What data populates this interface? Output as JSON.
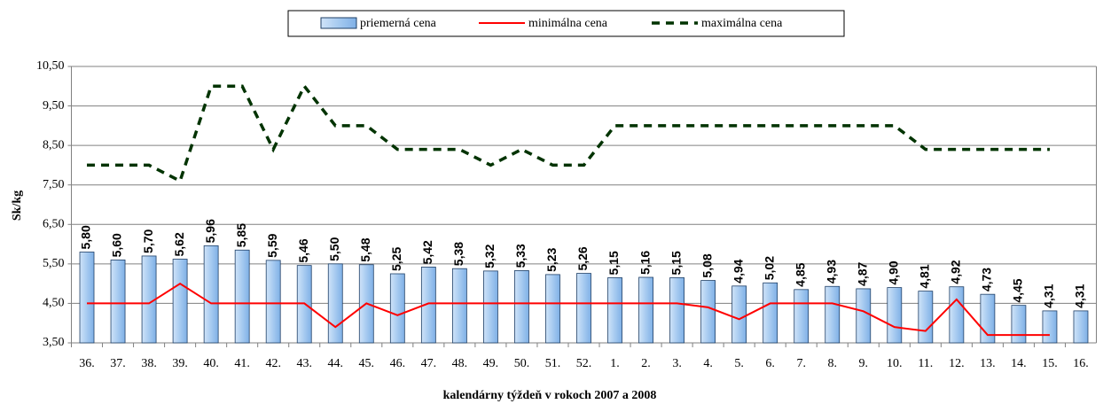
{
  "chart_data": {
    "type": "bar",
    "y_label": "Sk/kg",
    "x_label": "kalendárny týždeň v rokoch 2007 a 2008",
    "categories": [
      "36.",
      "37.",
      "38.",
      "39.",
      "40.",
      "41.",
      "42.",
      "43.",
      "44.",
      "45.",
      "46.",
      "47.",
      "48.",
      "49.",
      "50.",
      "51.",
      "52.",
      "1.",
      "2.",
      "3.",
      "4.",
      "5.",
      "6.",
      "7.",
      "8.",
      "9.",
      "10.",
      "11.",
      "12.",
      "13.",
      "14.",
      "15.",
      "16."
    ],
    "series": [
      {
        "name": "priemerná cena",
        "type": "bar",
        "color": "#a6caf0",
        "values": [
          5.8,
          5.6,
          5.7,
          5.62,
          5.96,
          5.85,
          5.59,
          5.46,
          5.5,
          5.48,
          5.25,
          5.42,
          5.38,
          5.32,
          5.33,
          5.23,
          5.26,
          5.15,
          5.16,
          5.15,
          5.08,
          4.94,
          5.02,
          4.85,
          4.93,
          4.87,
          4.9,
          4.81,
          4.92,
          4.73,
          4.45,
          4.31,
          4.31
        ],
        "value_labels": [
          "5,80",
          "5,60",
          "5,70",
          "5,62",
          "5,96",
          "5,85",
          "5,59",
          "5,46",
          "5,50",
          "5,48",
          "5,25",
          "5,42",
          "5,38",
          "5,32",
          "5,33",
          "5,23",
          "5,26",
          "5,15",
          "5,16",
          "5,15",
          "5,08",
          "4,94",
          "5,02",
          "4,85",
          "4,93",
          "4,87",
          "4,90",
          "4,81",
          "4,92",
          "4,73",
          "4,45",
          "4,31",
          "4,31"
        ]
      },
      {
        "name": "minimálna cena",
        "type": "line",
        "color": "#ff0000",
        "dashed": false,
        "values": [
          4.5,
          4.5,
          4.5,
          5.0,
          4.5,
          4.5,
          4.5,
          4.5,
          3.9,
          4.5,
          4.2,
          4.5,
          4.5,
          4.5,
          4.5,
          4.5,
          4.5,
          4.5,
          4.5,
          4.5,
          4.4,
          4.1,
          4.5,
          4.5,
          4.5,
          4.3,
          3.9,
          3.8,
          4.6,
          3.7,
          3.7,
          3.7,
          null
        ]
      },
      {
        "name": "maximálna cena",
        "type": "line",
        "color": "#003300",
        "dashed": true,
        "values": [
          8.0,
          8.0,
          8.0,
          7.6,
          10.0,
          10.0,
          8.4,
          10.0,
          9.0,
          9.0,
          8.4,
          8.4,
          8.4,
          8.0,
          8.4,
          8.0,
          8.0,
          9.0,
          9.0,
          9.0,
          9.0,
          9.0,
          9.0,
          9.0,
          9.0,
          9.0,
          9.0,
          8.4,
          8.4,
          8.4,
          8.4,
          8.4,
          null
        ]
      }
    ],
    "ylim": [
      3.5,
      10.5
    ],
    "yticks": [
      {
        "value": 3.5,
        "label": "3,50"
      },
      {
        "value": 4.5,
        "label": "4,50"
      },
      {
        "value": 5.5,
        "label": "5,50"
      },
      {
        "value": 6.5,
        "label": "6,50"
      },
      {
        "value": 7.5,
        "label": "7,50"
      },
      {
        "value": 8.5,
        "label": "8,50"
      },
      {
        "value": 9.5,
        "label": "9,50"
      },
      {
        "value": 10.5,
        "label": "10,50"
      }
    ],
    "grid": true,
    "legend": "top"
  }
}
